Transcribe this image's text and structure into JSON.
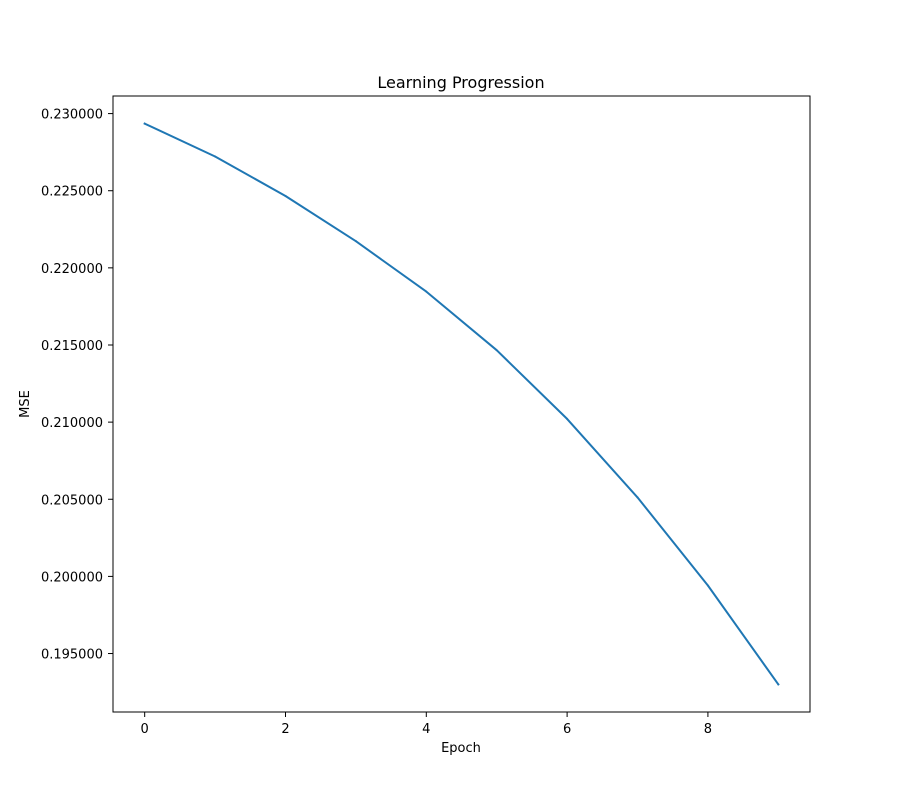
{
  "chart_data": {
    "type": "line",
    "title": "Learning Progression",
    "xlabel": "Epoch",
    "ylabel": "MSE",
    "xlim": [
      -0.45,
      9.45
    ],
    "ylim": [
      0.19121,
      0.23114
    ],
    "xticks": [
      0,
      2,
      4,
      6,
      8
    ],
    "xtick_labels": [
      "0",
      "2",
      "4",
      "6",
      "8"
    ],
    "yticks": [
      0.195,
      0.2,
      0.205,
      0.21,
      0.215,
      0.22,
      0.225,
      0.23
    ],
    "ytick_labels": [
      "0.195000",
      "0.200000",
      "0.205000",
      "0.210000",
      "0.215000",
      "0.220000",
      "0.225000",
      "0.230000"
    ],
    "grid": false,
    "legend": "none",
    "series": [
      {
        "color": "#1f77b4",
        "x": [
          0,
          1,
          2,
          3,
          4,
          5,
          6,
          7,
          8,
          9
        ],
        "y": [
          0.22935,
          0.22722,
          0.22466,
          0.22173,
          0.21846,
          0.21466,
          0.21021,
          0.20512,
          0.19941,
          0.193
        ]
      }
    ]
  }
}
